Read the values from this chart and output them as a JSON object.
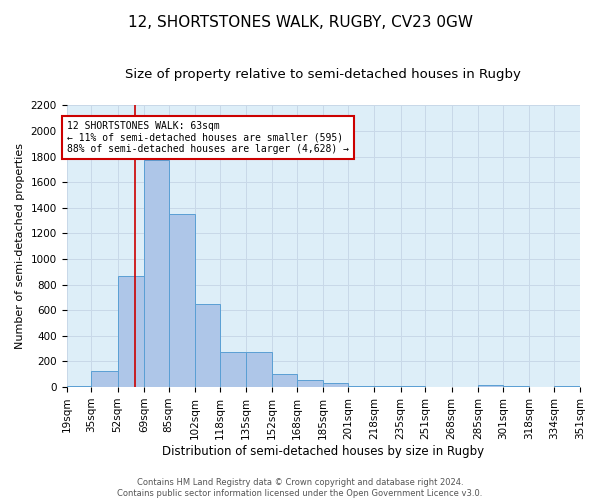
{
  "title": "12, SHORTSTONES WALK, RUGBY, CV23 0GW",
  "subtitle": "Size of property relative to semi-detached houses in Rugby",
  "xlabel": "Distribution of semi-detached houses by size in Rugby",
  "ylabel": "Number of semi-detached properties",
  "footer_line1": "Contains HM Land Registry data © Crown copyright and database right 2024.",
  "footer_line2": "Contains public sector information licensed under the Open Government Licence v3.0.",
  "bin_edges": [
    19,
    35,
    52,
    69,
    85,
    102,
    118,
    135,
    152,
    168,
    185,
    201,
    218,
    235,
    251,
    268,
    285,
    301,
    318,
    334,
    351
  ],
  "bar_heights": [
    5,
    125,
    870,
    1775,
    1350,
    645,
    275,
    275,
    100,
    55,
    35,
    10,
    5,
    5,
    0,
    0,
    20,
    5,
    0,
    5
  ],
  "bar_color": "#aec6e8",
  "bar_edge_color": "#5a9fd4",
  "property_size": 63,
  "vline_color": "#cc0000",
  "annotation_line1": "12 SHORTSTONES WALK: 63sqm",
  "annotation_line2": "← 11% of semi-detached houses are smaller (595)",
  "annotation_line3": "88% of semi-detached houses are larger (4,628) →",
  "annotation_box_color": "#cc0000",
  "ylim": [
    0,
    2200
  ],
  "yticks": [
    0,
    200,
    400,
    600,
    800,
    1000,
    1200,
    1400,
    1600,
    1800,
    2000,
    2200
  ],
  "grid_color": "#c8d8e8",
  "background_color": "#ddeef8",
  "title_fontsize": 11,
  "subtitle_fontsize": 9.5,
  "tick_label_fontsize": 7.5,
  "ylabel_fontsize": 8,
  "xlabel_fontsize": 8.5,
  "footer_fontsize": 6
}
